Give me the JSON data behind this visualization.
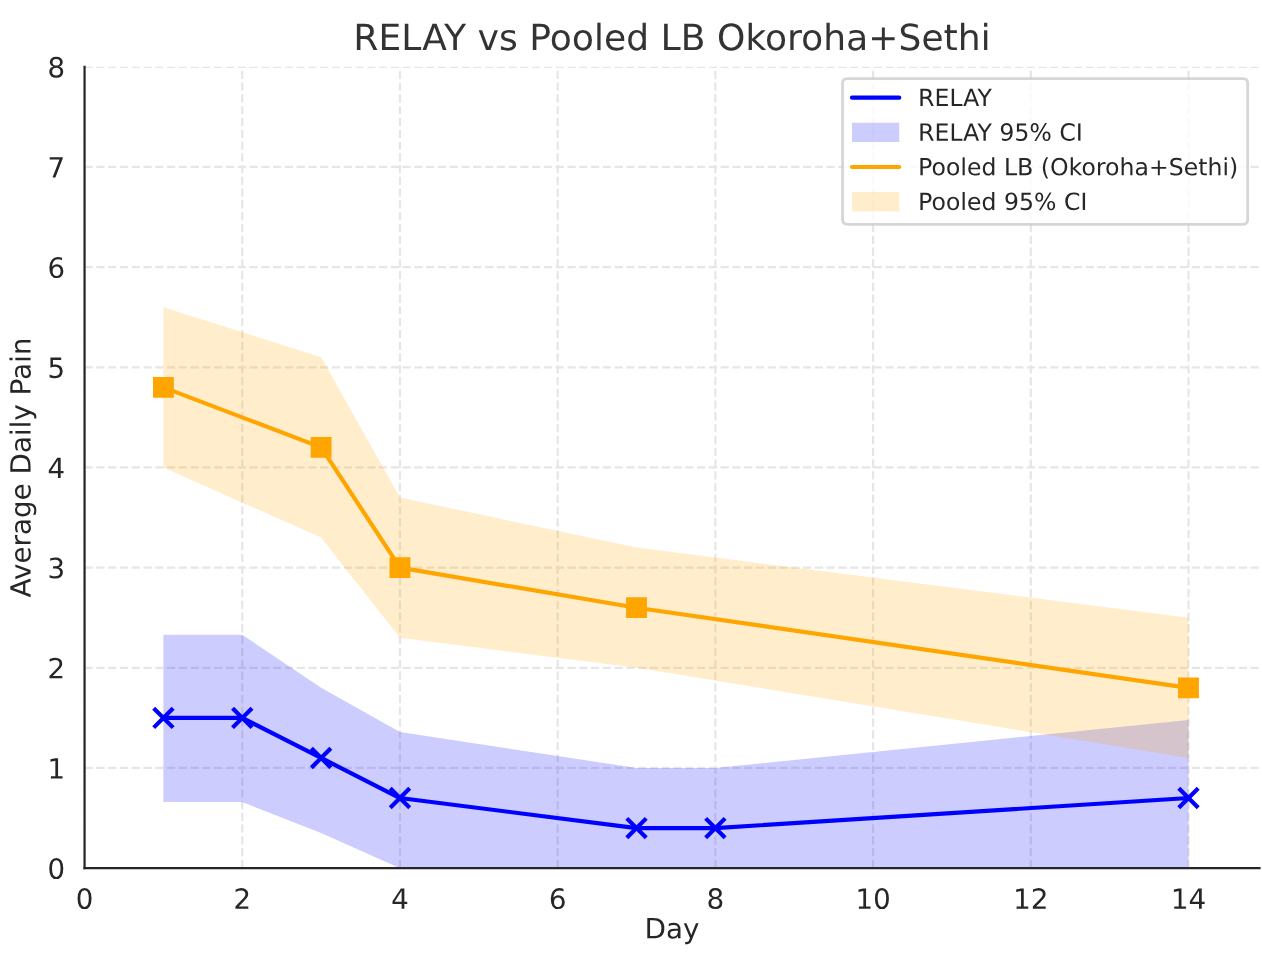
{
  "chart_data": {
    "type": "line",
    "title": "RELAY vs Pooled LB Okoroha+Sethi",
    "xlabel": "Day",
    "ylabel": "Average Daily Pain",
    "xlim": [
      0,
      14.9
    ],
    "xticks": [
      0,
      2,
      4,
      6,
      8,
      10,
      12,
      14
    ],
    "ylim": [
      0,
      8
    ],
    "yticks": [
      0,
      1,
      2,
      3,
      4,
      5,
      6,
      7,
      8
    ],
    "grid": true,
    "legend": "top right",
    "annotations": [
      "RELAY 95% CI",
      "Pooled 95% CI"
    ],
    "series": [
      {
        "name": "RELAY",
        "color": "#0000ff",
        "marker": "cross",
        "x": [
          1,
          2,
          3,
          4,
          7,
          8,
          14
        ],
        "values": [
          1.5,
          1.5,
          1.1,
          0.7,
          0.4,
          0.4,
          0.7
        ],
        "lower": [
          0.66,
          0.66,
          0.35,
          0.0,
          0.0,
          0.0,
          0.0
        ],
        "upper": [
          2.33,
          2.33,
          1.8,
          1.36,
          1.0,
          1.0,
          1.48
        ]
      },
      {
        "name": "Pooled LB (Okoroha+Sethi)",
        "color": "#ffa500",
        "marker": "square",
        "x": [
          1,
          3,
          4,
          7,
          14
        ],
        "values": [
          4.8,
          4.2,
          3.0,
          2.6,
          1.8
        ],
        "lower": [
          4.0,
          3.3,
          2.3,
          2.0,
          1.1
        ],
        "upper": [
          5.6,
          5.1,
          3.7,
          3.2,
          2.5
        ]
      }
    ]
  }
}
